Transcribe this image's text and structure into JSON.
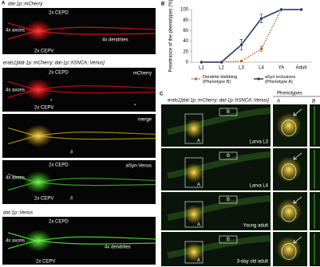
{
  "panel_a": {
    "letter": "A",
    "heading_1": "dat-1p::mCherry",
    "heading_2": "erals1[dat-1p::mCherry; dat-1p::hSNCA::Venus]",
    "heading_3": "dat-1p::Venus",
    "images": [
      {
        "labels": [
          "2x CEPD",
          "4x axons",
          "2x CEPV",
          "4x dendrites"
        ]
      },
      {
        "channel": "mCherry",
        "labels": [
          "2x CEPD",
          "4x axons",
          "2x CEPV",
          "*",
          "*"
        ]
      },
      {
        "channel": "merge",
        "labels": [
          "#"
        ]
      },
      {
        "channel": "aSyn-Venus",
        "labels": [
          "2x CEPD",
          "4x axons",
          "2x CEPV",
          "#"
        ]
      },
      {
        "labels": [
          "2x CEPD",
          "4x axons",
          "2x CEPV",
          "4x dendrites"
        ]
      }
    ]
  },
  "chart_data": {
    "type": "line",
    "panel_letter": "B",
    "ylabel": "Penetrance of the phenotypes (%)",
    "categories": [
      "L1",
      "L2",
      "L3",
      "L4",
      "YA",
      "Adult"
    ],
    "ylim": [
      0,
      100
    ],
    "yticks": [
      0,
      20,
      40,
      60,
      80,
      100
    ],
    "legend": "bottom",
    "series": [
      {
        "name": "Dendrite blebbing (Phenotype B)",
        "color": "#b5652a",
        "line_style": "dotted",
        "values": [
          0,
          0,
          2,
          25,
          100,
          100
        ],
        "errors": [
          null,
          null,
          null,
          5,
          null,
          null
        ]
      },
      {
        "name": "aSyn inclusions (Phenotype A)",
        "color": "#1f3864",
        "line_style": "solid",
        "values": [
          0,
          0,
          33,
          83,
          100,
          100
        ],
        "errors": [
          null,
          null,
          10,
          8,
          null,
          null
        ]
      }
    ]
  },
  "panel_c": {
    "letter": "C",
    "strain": "erals1[dat-1p::mCherry; dat-1p::hSNCA::Venus]",
    "phenotypes_heading": "Phenotypes",
    "columns": [
      "A",
      "B"
    ],
    "rows": [
      {
        "stage": "Larva L3",
        "box_labels": [
          "B",
          "A"
        ]
      },
      {
        "stage": "Larva L4",
        "box_labels": [
          "B",
          "A"
        ]
      },
      {
        "stage": "Young adult",
        "box_labels": [
          "B",
          "A"
        ]
      },
      {
        "stage": "3-day old adult",
        "box_labels": [
          "B",
          "A"
        ]
      }
    ]
  }
}
